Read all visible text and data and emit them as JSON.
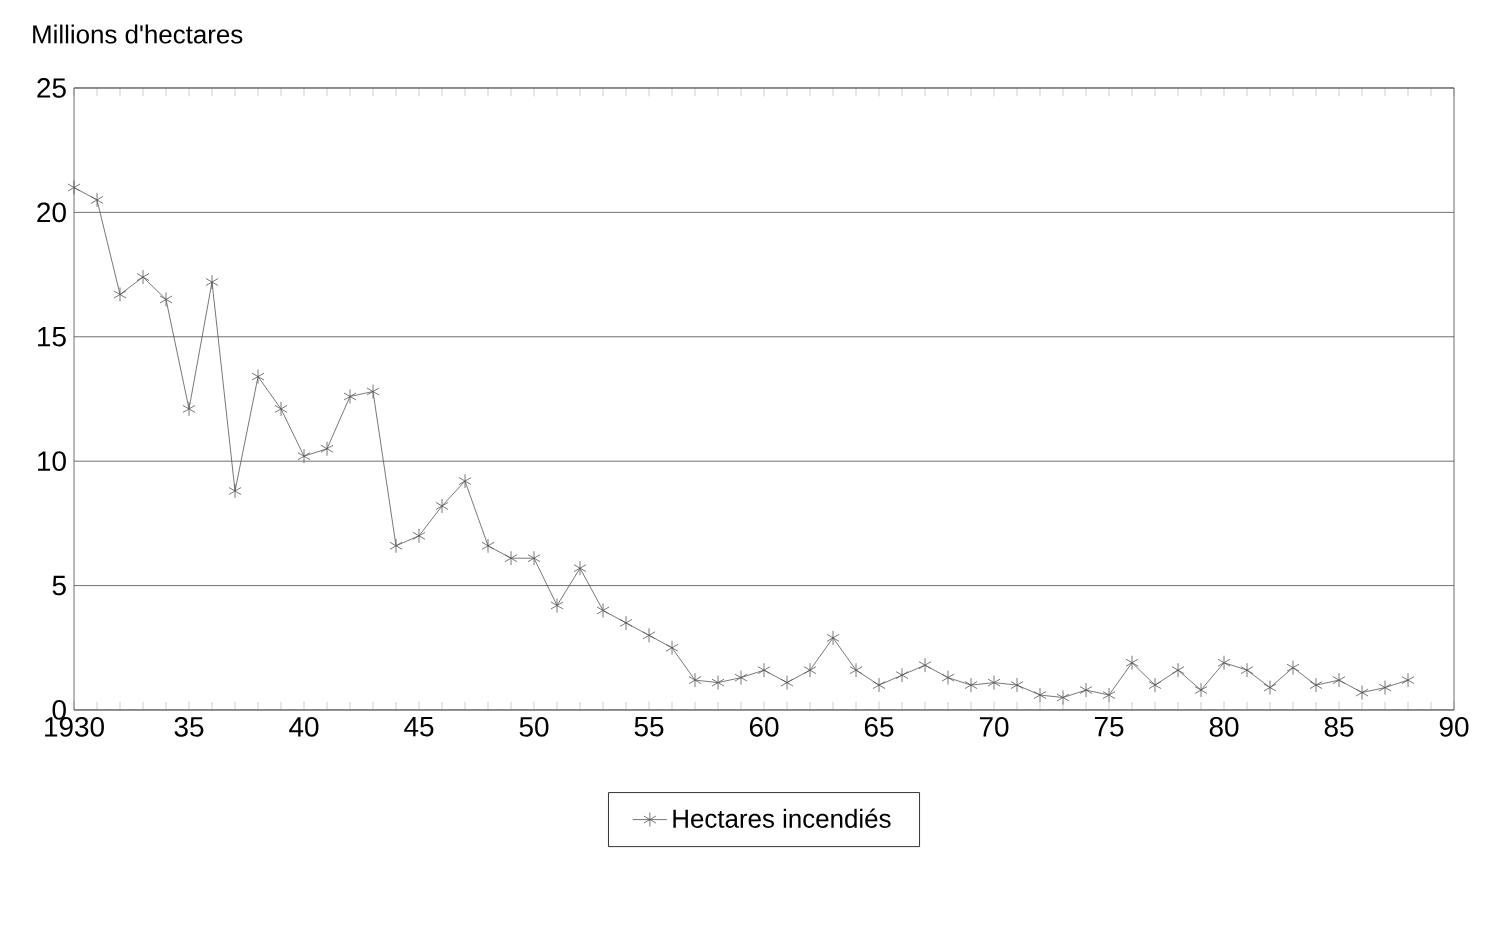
{
  "chart_data": {
    "type": "line",
    "ylabel": "Millions d'hectares",
    "x": [
      1930,
      1931,
      1932,
      1933,
      1934,
      1935,
      1936,
      1937,
      1938,
      1939,
      1940,
      1941,
      1942,
      1943,
      1944,
      1945,
      1946,
      1947,
      1948,
      1949,
      1950,
      1951,
      1952,
      1953,
      1954,
      1955,
      1956,
      1957,
      1958,
      1959,
      1960,
      1961,
      1962,
      1963,
      1964,
      1965,
      1966,
      1967,
      1968,
      1969,
      1970,
      1971,
      1972,
      1973,
      1974,
      1975,
      1976,
      1977,
      1978,
      1979,
      1980,
      1981,
      1982,
      1983,
      1984,
      1985,
      1986,
      1987,
      1988
    ],
    "series": [
      {
        "name": "Hectares incendiés",
        "color": "#555555",
        "values": [
          21,
          20.5,
          16.7,
          17.4,
          16.5,
          12.1,
          17.2,
          8.8,
          13.4,
          12.1,
          10.2,
          10.5,
          12.6,
          12.8,
          6.6,
          7.0,
          8.2,
          9.2,
          6.6,
          6.1,
          6.1,
          4.2,
          5.7,
          4.0,
          3.5,
          3.0,
          2.5,
          1.2,
          1.1,
          1.3,
          1.6,
          1.1,
          1.6,
          2.9,
          1.6,
          1.0,
          1.4,
          1.8,
          1.3,
          1.0,
          1.1,
          1.0,
          0.6,
          0.5,
          0.8,
          0.6,
          1.9,
          1.0,
          1.6,
          0.8,
          1.9,
          1.6,
          0.9,
          1.7,
          1.0,
          1.2,
          0.7,
          0.9,
          1.2
        ]
      }
    ],
    "xlim": [
      1930,
      1990
    ],
    "ylim": [
      0,
      25
    ],
    "xticks": [
      1930,
      {
        "value": 1935,
        "label": "35"
      },
      {
        "value": 1940,
        "label": "40"
      },
      {
        "value": 1945,
        "label": "45"
      },
      {
        "value": 1950,
        "label": "50"
      },
      {
        "value": 1955,
        "label": "55"
      },
      {
        "value": 1960,
        "label": "60"
      },
      {
        "value": 1965,
        "label": "65"
      },
      {
        "value": 1970,
        "label": "70"
      },
      {
        "value": 1975,
        "label": "75"
      },
      {
        "value": 1980,
        "label": "80"
      },
      {
        "value": 1985,
        "label": "85"
      },
      {
        "value": 1990,
        "label": "90"
      }
    ],
    "yticks": [
      0,
      5,
      10,
      15,
      20,
      25
    ],
    "grid": "y",
    "legend": "bottom",
    "marker": "cross",
    "line_style": "solid"
  }
}
